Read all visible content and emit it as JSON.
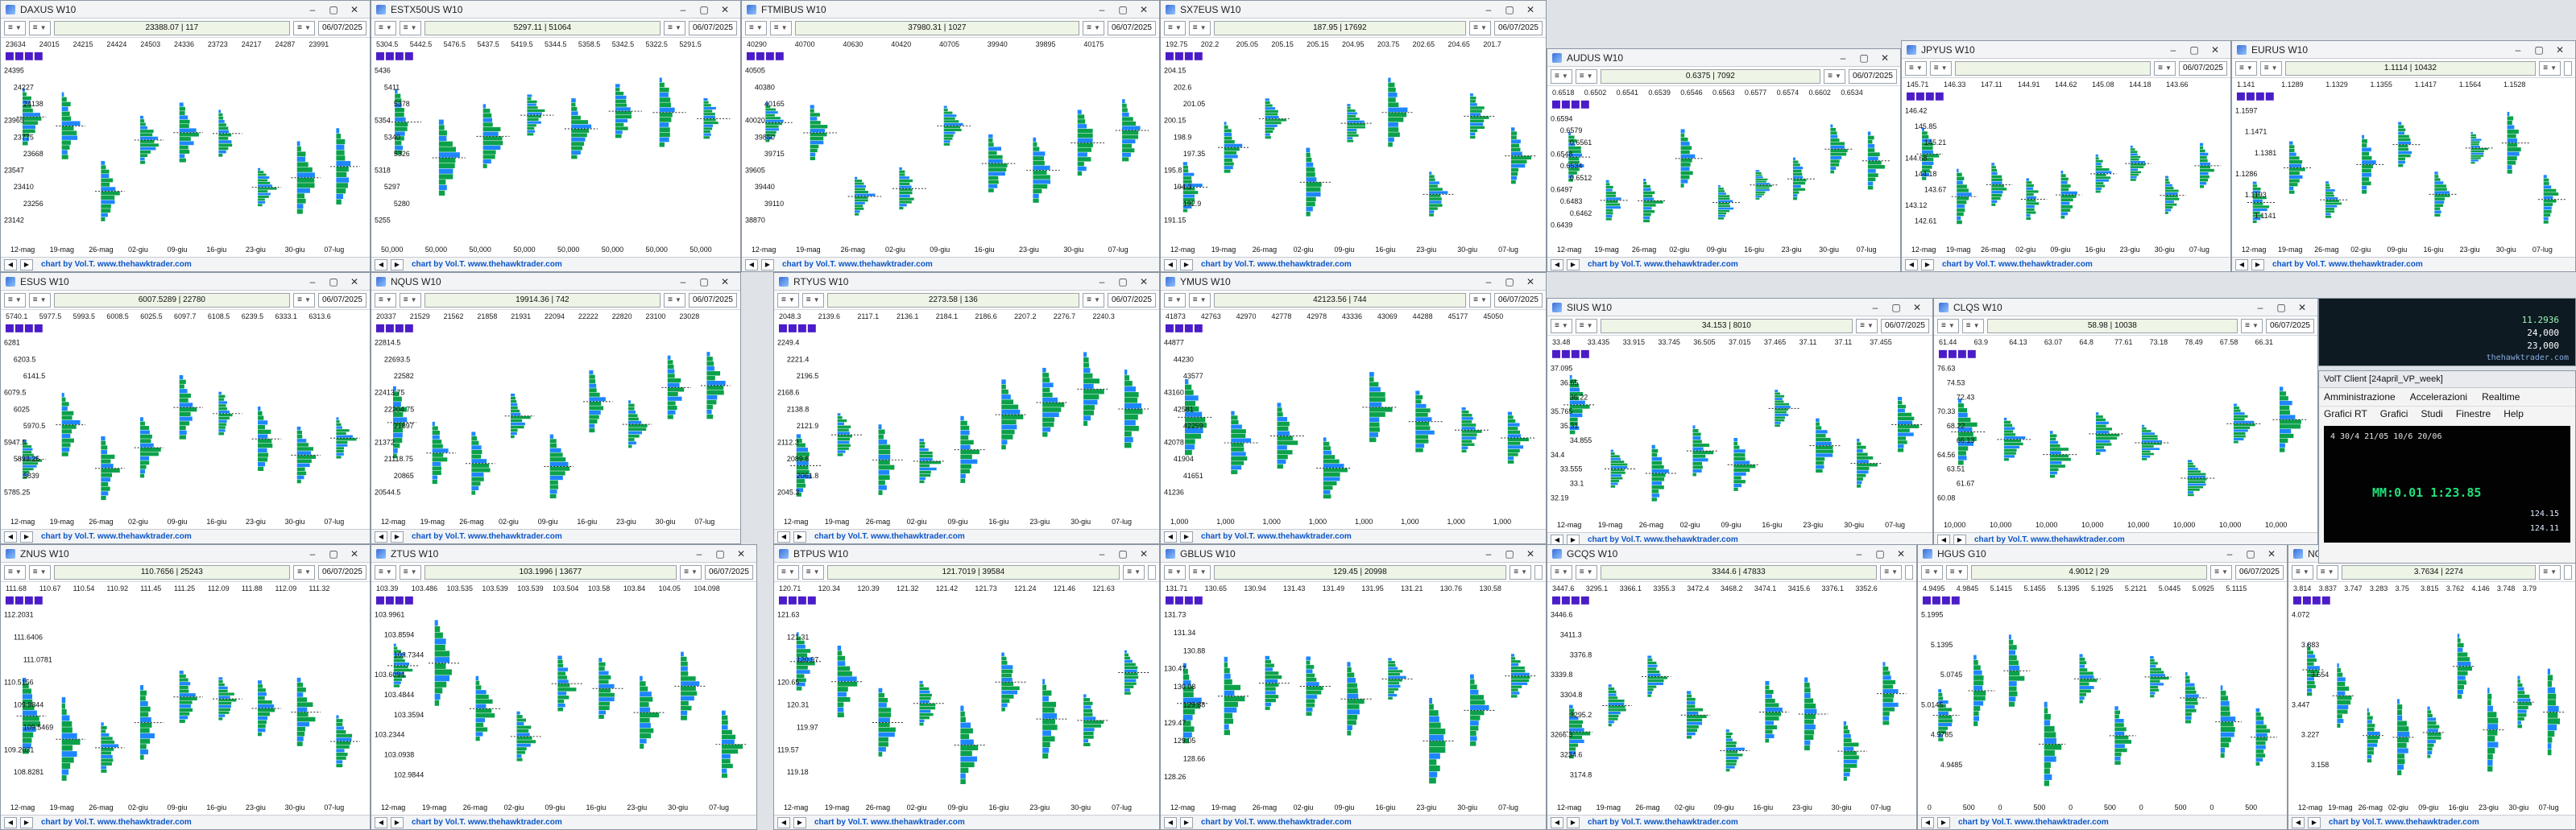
{
  "colors": {
    "profile_green": "#0ba14a",
    "profile_blue": "#1d86ff",
    "profile_dark": "#1b1b1b",
    "poc_line": "#2b2b2b",
    "accent_purple": "#4b1cc7",
    "credit_blue": "#0b55c7"
  },
  "icons": [
    "window-icon",
    "minimize-icon",
    "maximize-icon",
    "close-icon",
    "chevron-down-icon"
  ],
  "common": {
    "window_controls": {
      "minimize": "–",
      "maximize": "▢",
      "close": "✕"
    },
    "toolbar_select_label": "≡",
    "credit": "chart by Vol.T. www.thehawktrader.com"
  },
  "windows": [
    {
      "title": "DAXUS W10",
      "price_box": "23388.07 | 117",
      "date": "06/07/2025",
      "x_labels": [
        "12-mag",
        "19-mag",
        "26-mag",
        "02-giu",
        "09-giu",
        "16-giu",
        "23-giu",
        "30-giu",
        "07-lug"
      ],
      "header_values": [
        "23634",
        "24015",
        "24215",
        "24424",
        "24503",
        "24336",
        "23723",
        "24217",
        "24287",
        "23991"
      ],
      "price_labels": [
        "24395",
        "24227",
        "24138",
        "23965",
        "23775",
        "23668",
        "23547",
        "23410",
        "23256",
        "23142"
      ],
      "chart_data": {
        "type": "profile",
        "ylim": [
          22500,
          24800
        ],
        "poc": 23830
      }
    },
    {
      "title": "ESTX50US W10",
      "price_box": "5297.11 | 51064",
      "date": "06/07/2025",
      "x_labels": [
        "50,000",
        "50,000",
        "50,000",
        "50,000",
        "50,000",
        "50,000",
        "50,000",
        "50,000"
      ],
      "header_values": [
        "5304.5",
        "5442.5",
        "5476.5",
        "5437.5",
        "5419.5",
        "5344.5",
        "5358.5",
        "5342.5",
        "5322.5",
        "5291.5"
      ],
      "price_labels": [
        "5436",
        "5411",
        "5378",
        "5354",
        "5340",
        "5326",
        "5318",
        "5297",
        "5280",
        "5255"
      ],
      "chart_data": {
        "type": "profile",
        "ylim": [
          5150,
          5550
        ],
        "poc": 5300
      }
    },
    {
      "title": "FTMIBUS W10",
      "price_box": "37980.31 | 1027",
      "date": "06/07/2025",
      "x_labels": [
        "12-mag",
        "19-mag",
        "26-mag",
        "02-giu",
        "09-giu",
        "16-giu",
        "23-giu",
        "30-giu",
        "07-lug"
      ],
      "header_values": [
        "40290",
        "40700",
        "40630",
        "40420",
        "40705",
        "39940",
        "39895",
        "40175"
      ],
      "price_labels": [
        "40505",
        "40380",
        "40165",
        "40020",
        "39850",
        "39715",
        "39605",
        "39440",
        "39110",
        "38870"
      ],
      "chart_data": {
        "type": "profile",
        "ylim": [
          38400,
          40900
        ],
        "poc": 39500
      }
    },
    {
      "title": "SX7EUS W10",
      "price_box": "187.95 | 17692",
      "date": "06/07/2025",
      "x_labels": [
        "12-mag",
        "19-mag",
        "26-mag",
        "02-giu",
        "09-giu",
        "16-giu",
        "23-giu",
        "30-giu",
        "07-lug"
      ],
      "header_values": [
        "192.75",
        "202.2",
        "205.05",
        "205.15",
        "205.15",
        "204.95",
        "203.75",
        "202.65",
        "204.65",
        "201.7"
      ],
      "price_labels": [
        "204.15",
        "202.6",
        "201.05",
        "200.15",
        "198.9",
        "197.35",
        "195.8",
        "194.3",
        "192.9",
        "191.15"
      ],
      "chart_data": {
        "type": "profile",
        "ylim": [
          188,
          207
        ],
        "poc": 198
      }
    },
    {
      "title": "AUDUS W10",
      "price_box": "0.6375 | 7092",
      "date": "06/07/2025",
      "x_labels": [
        "12-mag",
        "19-mag",
        "26-mag",
        "02-giu",
        "09-giu",
        "16-giu",
        "23-giu",
        "30-giu",
        "07-lug"
      ],
      "header_values": [
        "0.6518",
        "0.6502",
        "0.6541",
        "0.6539",
        "0.6546",
        "0.6563",
        "0.6577",
        "0.6574",
        "0.6602",
        "0.6534"
      ],
      "price_labels": [
        "0.6594",
        "0.6579",
        "0.6561",
        "0.6548",
        "0.6534",
        "0.6512",
        "0.6497",
        "0.6483",
        "0.6462",
        "0.6439"
      ],
      "chart_data": {
        "type": "profile",
        "ylim": [
          0.636,
          0.662
        ],
        "poc": 0.652
      }
    },
    {
      "title": "JPYUS W10",
      "price_box": "",
      "date": "06/07/2025",
      "x_labels": [
        "12-mag",
        "19-mag",
        "26-mag",
        "02-giu",
        "09-giu",
        "16-giu",
        "23-giu",
        "30-giu",
        "07-lug"
      ],
      "header_values": [
        "145.71",
        "146.33",
        "147.11",
        "144.91",
        "144.62",
        "145.08",
        "144.18",
        "143.66"
      ],
      "price_labels": [
        "146.42",
        "145.85",
        "145.21",
        "144.68",
        "144.18",
        "143.67",
        "143.12",
        "142.61"
      ],
      "chart_data": {
        "type": "profile",
        "ylim": [
          142.2,
          147.8
        ],
        "poc": 144.5
      }
    },
    {
      "title": "EURUS W10",
      "price_box": "1.1114 | 10432",
      "date": "",
      "x_labels": [
        "12-mag",
        "19-mag",
        "26-mag",
        "02-giu",
        "09-giu",
        "16-giu",
        "23-giu",
        "30-giu",
        "07-lug"
      ],
      "header_values": [
        "1.141",
        "1.1289",
        "1.1329",
        "1.1355",
        "1.1417",
        "1.1564",
        "1.1528"
      ],
      "price_labels": [
        "1.1597",
        "1.1471",
        "1.1381",
        "1.1286",
        "1.1193",
        "1.1141"
      ],
      "chart_data": {
        "type": "profile",
        "ylim": [
          1.105,
          1.165
        ],
        "poc": 1.14
      }
    },
    {
      "title": "ESUS W10",
      "price_box": "6007.5289 | 22780",
      "date": "06/07/2025",
      "x_labels": [
        "12-mag",
        "19-mag",
        "26-mag",
        "02-giu",
        "09-giu",
        "16-giu",
        "23-giu",
        "30-giu",
        "07-lug"
      ],
      "header_values": [
        "5740.1",
        "5977.5",
        "5993.5",
        "6008.5",
        "6025.5",
        "6097.7",
        "6108.5",
        "6239.5",
        "6333.1",
        "6313.6"
      ],
      "price_labels": [
        "6281",
        "6203.5",
        "6141.5",
        "6079.5",
        "6025",
        "5970.5",
        "5947.5",
        "5893.25",
        "5839",
        "5785.25"
      ],
      "chart_data": {
        "type": "profile",
        "ylim": [
          5620,
          6360
        ],
        "poc": 6025
      }
    },
    {
      "title": "NQUS W10",
      "price_box": "19914.36 | 742",
      "date": "06/07/2025",
      "x_labels": [
        "12-mag",
        "19-mag",
        "26-mag",
        "02-giu",
        "09-giu",
        "16-giu",
        "23-giu",
        "30-giu",
        "07-lug"
      ],
      "header_values": [
        "20337",
        "21529",
        "21562",
        "21858",
        "21931",
        "22094",
        "22222",
        "22820",
        "23100",
        "23028"
      ],
      "price_labels": [
        "22814.5",
        "22693.5",
        "22582",
        "22413.75",
        "22204.75",
        "21897",
        "21372",
        "21118.75",
        "20865",
        "20544.5"
      ],
      "chart_data": {
        "type": "profile",
        "ylim": [
          19800,
          23000
        ],
        "poc": 21900
      }
    },
    {
      "title": "RTYUS W10",
      "price_box": "2273.58 | 136",
      "date": "06/07/2025",
      "x_labels": [
        "12-mag",
        "19-mag",
        "26-mag",
        "02-giu",
        "09-giu",
        "16-giu",
        "23-giu",
        "30-giu",
        "07-lug"
      ],
      "header_values": [
        "2048.3",
        "2139.6",
        "2117.1",
        "2136.1",
        "2184.1",
        "2186.6",
        "2207.2",
        "2276.7",
        "2240.3"
      ],
      "price_labels": [
        "2249.4",
        "2221.4",
        "2196.5",
        "2168.6",
        "2138.8",
        "2121.9",
        "2112.3",
        "2089.8",
        "2061.8",
        "2045.3"
      ],
      "chart_data": {
        "type": "profile",
        "ylim": [
          2000,
          2290
        ],
        "poc": 2130
      }
    },
    {
      "title": "YMUS W10",
      "price_box": "42123.56 | 744",
      "date": "06/07/2025",
      "x_labels": [
        "1,000",
        "1,000",
        "1,000",
        "1,000",
        "1,000",
        "1,000",
        "1,000",
        "1,000"
      ],
      "header_values": [
        "41873",
        "42763",
        "42970",
        "42778",
        "42978",
        "43336",
        "43069",
        "44288",
        "45177",
        "45050"
      ],
      "price_labels": [
        "44877",
        "44230",
        "43577",
        "43160",
        "42581",
        "42259",
        "42078",
        "41904",
        "41651",
        "41236"
      ],
      "chart_data": {
        "type": "profile",
        "ylim": [
          40800,
          45400
        ],
        "poc": 42300
      }
    },
    {
      "title": "SIUS W10",
      "price_box": "34.153 | 8010",
      "date": "06/07/2025",
      "x_labels": [
        "12-mag",
        "19-mag",
        "26-mag",
        "02-giu",
        "09-giu",
        "16-giu",
        "23-giu",
        "30-giu",
        "07-lug"
      ],
      "header_values": [
        "33.48",
        "33.435",
        "33.915",
        "33.745",
        "36.505",
        "37.015",
        "37.465",
        "37.11",
        "37.11",
        "37.455"
      ],
      "price_labels": [
        "37.095",
        "36.65",
        "36.22",
        "35.765",
        "35.31",
        "34.855",
        "34.4",
        "33.555",
        "33.1",
        "32.19"
      ],
      "chart_data": {
        "type": "profile",
        "ylim": [
          31.8,
          37.8
        ],
        "poc": 34.5
      }
    },
    {
      "title": "CLQS W10",
      "price_box": "58.98 | 10038",
      "date": "06/07/2025",
      "x_labels": [
        "10,000",
        "10,000",
        "10,000",
        "10,000",
        "10,000",
        "10,000",
        "10,000",
        "10,000"
      ],
      "header_values": [
        "61.44",
        "63.9",
        "64.13",
        "63.07",
        "64.8",
        "77.61",
        "73.18",
        "78.49",
        "67.58",
        "66.31"
      ],
      "price_labels": [
        "76.63",
        "74.53",
        "72.43",
        "70.33",
        "68.22",
        "66.13",
        "64.56",
        "63.51",
        "61.67",
        "60.08"
      ],
      "chart_data": {
        "type": "profile",
        "ylim": [
          58,
          79
        ],
        "poc": 64
      }
    },
    {
      "title": "ZNUS W10",
      "price_box": "110.7656 | 25243",
      "date": "06/07/2025",
      "x_labels": [
        "12-mag",
        "19-mag",
        "26-mag",
        "02-giu",
        "09-giu",
        "16-giu",
        "23-giu",
        "30-giu",
        "07-lug"
      ],
      "header_values": [
        "111.68",
        "110.67",
        "110.54",
        "110.92",
        "111.45",
        "111.25",
        "112.09",
        "111.88",
        "112.09",
        "111.32"
      ],
      "price_labels": [
        "112.2031",
        "111.6406",
        "111.0781",
        "110.5156",
        "109.9844",
        "109.5469",
        "109.2031",
        "108.8281"
      ],
      "chart_data": {
        "type": "profile",
        "ylim": [
          108.4,
          112.4
        ],
        "poc": 110.6
      }
    },
    {
      "title": "ZTUS W10",
      "price_box": "103.1996 | 13677",
      "date": "06/07/2025",
      "x_labels": [
        "12-mag",
        "19-mag",
        "26-mag",
        "02-giu",
        "09-giu",
        "16-giu",
        "23-giu",
        "30-giu",
        "07-lug"
      ],
      "header_values": [
        "103.39",
        "103.486",
        "103.535",
        "103.539",
        "103.539",
        "103.504",
        "103.58",
        "103.84",
        "104.05",
        "104.098"
      ],
      "price_labels": [
        "103.9961",
        "103.8594",
        "103.7344",
        "103.6094",
        "103.4844",
        "103.3594",
        "103.2344",
        "103.0938",
        "102.9844"
      ],
      "chart_data": {
        "type": "profile",
        "ylim": [
          102.9,
          104.1
        ],
        "poc": 103.5
      }
    },
    {
      "title": "BTPUS W10",
      "price_box": "121.7019 | 39584",
      "date": "",
      "x_labels": [
        "12-mag",
        "19-mag",
        "26-mag",
        "02-giu",
        "09-giu",
        "16-giu",
        "23-giu",
        "30-giu",
        "07-lug"
      ],
      "header_values": [
        "120.71",
        "120.34",
        "120.39",
        "121.32",
        "121.42",
        "121.73",
        "121.24",
        "121.46",
        "121.63"
      ],
      "price_labels": [
        "121.63",
        "121.31",
        "120.97",
        "120.65",
        "120.31",
        "119.97",
        "119.57",
        "119.18"
      ],
      "chart_data": {
        "type": "profile",
        "ylim": [
          119,
          122
        ],
        "poc": 120.6
      }
    },
    {
      "title": "GBLUS W10",
      "price_box": "129.45 | 20998",
      "date": "",
      "x_labels": [
        "12-mag",
        "19-mag",
        "26-mag",
        "02-giu",
        "09-giu",
        "16-giu",
        "23-giu",
        "30-giu",
        "07-lug"
      ],
      "header_values": [
        "131.71",
        "130.65",
        "130.94",
        "131.43",
        "131.49",
        "131.95",
        "131.21",
        "130.76",
        "130.58"
      ],
      "price_labels": [
        "131.73",
        "131.34",
        "130.88",
        "130.47",
        "130.08",
        "129.88",
        "129.47",
        "129.05",
        "128.66",
        "128.26"
      ],
      "chart_data": {
        "type": "profile",
        "ylim": [
          128,
          132
        ],
        "poc": 130.3
      }
    },
    {
      "title": "GCQS W10",
      "price_box": "3344.6 | 47833",
      "date": "",
      "x_labels": [
        "12-mag",
        "19-mag",
        "26-mag",
        "02-giu",
        "09-giu",
        "16-giu",
        "23-giu",
        "30-giu",
        "07-lug"
      ],
      "header_values": [
        "3447.6",
        "3295.1",
        "3366.1",
        "3355.3",
        "3472.4",
        "3468.2",
        "3474.1",
        "3415.6",
        "3376.1",
        "3352.6"
      ],
      "price_labels": [
        "3446.6",
        "3411.3",
        "3376.8",
        "3339.8",
        "3304.8",
        "3295.2",
        "3266.3",
        "3234.6",
        "3174.8"
      ],
      "chart_data": {
        "type": "profile",
        "ylim": [
          3160,
          3490
        ],
        "poc": 3340
      }
    },
    {
      "title": "HGUS G10",
      "price_box": "4.9012 | 29",
      "date": "06/07/2025",
      "x_labels": [
        "0",
        "500",
        "0",
        "500",
        "0",
        "500",
        "0",
        "500",
        "0",
        "500"
      ],
      "header_values": [
        "4.9495",
        "4.9845",
        "5.1415",
        "5.1455",
        "5.1395",
        "5.1925",
        "5.2121",
        "5.0445",
        "5.0925",
        "5.1115"
      ],
      "price_labels": [
        "5.1995",
        "5.1395",
        "5.0745",
        "5.0145",
        "4.9785",
        "4.9485"
      ],
      "chart_data": {
        "type": "profile",
        "ylim": [
          4.7,
          5.25
        ],
        "poc": 5.05
      }
    },
    {
      "title": "NGQS W10",
      "price_box": "3.7634 | 2274",
      "date": "",
      "x_labels": [
        "12-mag",
        "19-mag",
        "26-mag",
        "02-giu",
        "09-giu",
        "16-giu",
        "23-giu",
        "30-giu",
        "07-lug"
      ],
      "header_values": [
        "3.814",
        "3.837",
        "3.747",
        "3.283",
        "3.75",
        "3.815",
        "3.762",
        "4.146",
        "3.748",
        "3.79"
      ],
      "price_labels": [
        "4.072",
        "3.883",
        "3.654",
        "3.447",
        "3.227",
        "3.158"
      ],
      "chart_data": {
        "type": "profile",
        "ylim": [
          3.0,
          4.2
        ],
        "poc": 3.6
      }
    }
  ],
  "client": {
    "title": "VolT Client [24april_VP_week]",
    "menu_row1": [
      "Amministrazione",
      "Accelerazioni",
      "Realtime"
    ],
    "menu_row2": [
      "Grafici RT",
      "Grafici",
      "Studi",
      "Finestre",
      "Help"
    ],
    "ticker": "4 30/4 21/05 10/6 20/06",
    "price": "MM:0.01 1:23.85",
    "v1": "124.15",
    "v2": "124.11"
  },
  "mini_panel": {
    "line1": "11.2936",
    "line2": "24,000",
    "line3": "23,000",
    "logo": "thehawktrader.com"
  }
}
